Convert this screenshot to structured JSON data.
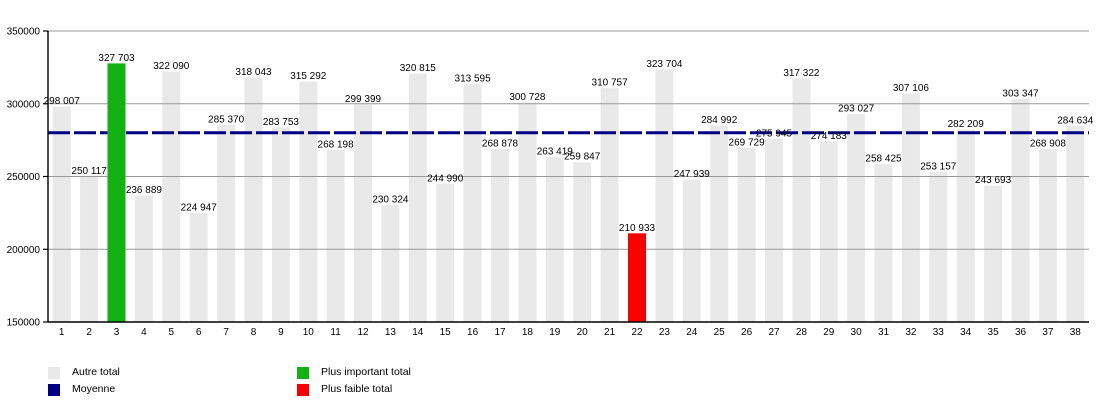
{
  "chart_data": {
    "type": "bar",
    "title": "",
    "xlabel": "",
    "ylabel": "",
    "categories": [
      1,
      2,
      3,
      4,
      5,
      6,
      7,
      8,
      9,
      10,
      11,
      12,
      13,
      14,
      15,
      16,
      17,
      18,
      19,
      20,
      21,
      22,
      23,
      24,
      25,
      26,
      27,
      28,
      29,
      30,
      31,
      32,
      33,
      34,
      35,
      36,
      37,
      38
    ],
    "values": [
      298007,
      250117,
      327703,
      236889,
      322090,
      224947,
      285370,
      318043,
      283753,
      315292,
      268198,
      299399,
      230324,
      320815,
      244990,
      313595,
      268878,
      300728,
      263419,
      259847,
      310757,
      210933,
      323704,
      247939,
      284992,
      269729,
      275945,
      317322,
      274183,
      293027,
      258425,
      307106,
      253157,
      282209,
      243693,
      303347,
      268908,
      284634
    ],
    "thousands_separator": " ",
    "ylim": [
      150000,
      350000
    ],
    "yticks": [
      150000,
      200000,
      250000,
      300000,
      350000
    ],
    "grid": true,
    "average_line": {
      "style": "dashed",
      "derived_from": "mean of values"
    },
    "legend_position": "bottom",
    "colors": {
      "other_bar": "#e9e9e9",
      "max_bar": "#12b212",
      "min_bar": "#fb0000",
      "average": "#000084",
      "gridline": "#999999",
      "axis": "#000000",
      "text": "#000000",
      "background": "#ffffff"
    },
    "legend": [
      {
        "label": "Autre total",
        "color": "#e9e9e9"
      },
      {
        "label": "Moyenne",
        "color": "#000084"
      },
      {
        "label": "Plus important total",
        "color": "#12b212"
      },
      {
        "label": "Plus faible total",
        "color": "#fb0000"
      }
    ]
  }
}
